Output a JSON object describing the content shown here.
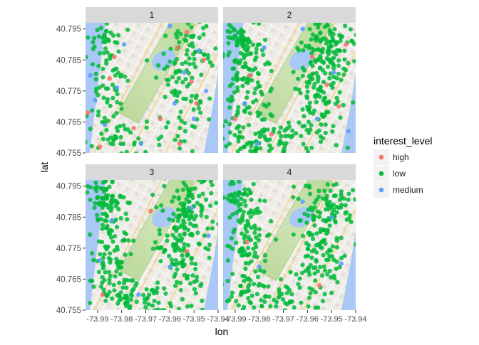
{
  "chart_data": {
    "type": "scatter",
    "facet_variable": "bedrooms",
    "facets": [
      "1",
      "2",
      "3",
      "4"
    ],
    "xlabel": "lon",
    "ylabel": "lat",
    "xlim": [
      -73.995,
      -73.94
    ],
    "ylim": [
      40.755,
      40.797
    ],
    "x_ticks": [
      -73.99,
      -73.98,
      -73.97,
      -73.96,
      -73.95,
      -73.94
    ],
    "x_tick_labels": [
      "-73.99",
      "-73.98",
      "-73.97",
      "-73.96",
      "-73.95",
      "-73.94"
    ],
    "y_ticks": [
      40.755,
      40.765,
      40.775,
      40.785,
      40.795
    ],
    "y_tick_labels": [
      "40.755",
      "40.765",
      "40.775",
      "40.785",
      "40.795"
    ],
    "grid": false,
    "background": "street-map-tiles",
    "legend": {
      "title": "interest_level",
      "placement": "right",
      "entries": [
        "high",
        "low",
        "medium"
      ]
    },
    "series_colors": {
      "high": "#F8766D",
      "low": "#00BA38",
      "medium": "#619CFF"
    },
    "series": [
      {
        "name": "high",
        "panels": {
          "1": [
            [
              -73.985,
              40.779
            ],
            [
              -73.983,
              40.786
            ],
            [
              -73.994,
              40.768
            ],
            [
              -73.975,
              40.763
            ],
            [
              -73.957,
              40.789
            ],
            [
              -73.951,
              40.778
            ],
            [
              -73.949,
              40.771
            ],
            [
              -73.946,
              40.785
            ],
            [
              -73.956,
              40.758
            ],
            [
              -73.989,
              40.757
            ],
            [
              -73.964,
              40.766
            ],
            [
              -73.953,
              40.794
            ]
          ],
          "2": [
            [
              -73.984,
              40.78
            ],
            [
              -73.975,
              40.761
            ],
            [
              -73.952,
              40.777
            ],
            [
              -73.947,
              40.77
            ],
            [
              -73.958,
              40.786
            ],
            [
              -73.99,
              40.766
            ],
            [
              -73.944,
              40.79
            ]
          ],
          "3": [
            [
              -73.988,
              40.76
            ],
            [
              -73.953,
              40.774
            ],
            [
              -73.968,
              40.787
            ]
          ],
          "4": [
            [
              -73.985,
              40.777
            ],
            [
              -73.955,
              40.763
            ]
          ]
        }
      },
      {
        "name": "medium",
        "panels": {
          "1": [
            [
              -73.991,
              40.772
            ],
            [
              -73.982,
              40.776
            ],
            [
              -73.979,
              40.79
            ],
            [
              -73.954,
              40.781
            ],
            [
              -73.95,
              40.766
            ],
            [
              -73.945,
              40.775
            ],
            [
              -73.96,
              40.796
            ],
            [
              -73.987,
              40.764
            ],
            [
              -73.972,
              40.758
            ],
            [
              -73.948,
              40.788
            ],
            [
              -73.958,
              40.771
            ],
            [
              -73.993,
              40.78
            ]
          ],
          "2": [
            [
              -73.978,
              40.789
            ],
            [
              -73.949,
              40.781
            ],
            [
              -73.956,
              40.766
            ],
            [
              -73.986,
              40.771
            ],
            [
              -73.943,
              40.762
            ],
            [
              -73.962,
              40.795
            ],
            [
              -73.981,
              40.758
            ]
          ],
          "3": [
            [
              -73.984,
              40.784
            ],
            [
              -73.951,
              40.788
            ],
            [
              -73.96,
              40.769
            ],
            [
              -73.989,
              40.771
            ],
            [
              -73.944,
              40.779
            ],
            [
              -73.973,
              40.76
            ]
          ],
          "4": [
            [
              -73.95,
              40.785
            ],
            [
              -73.98,
              40.769
            ],
            [
              -73.946,
              40.77
            ],
            [
              -73.962,
              40.79
            ]
          ]
        }
      }
    ]
  }
}
